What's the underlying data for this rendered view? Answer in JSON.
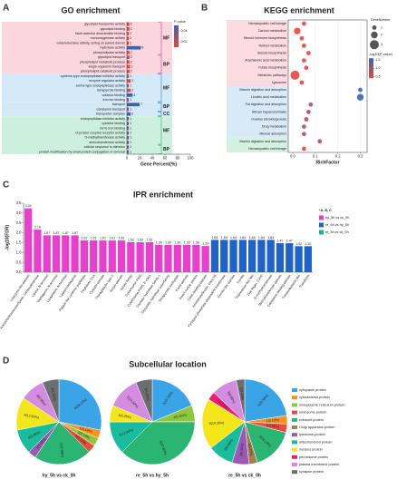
{
  "chart_data": [
    {
      "type": "hbar",
      "panel": "A",
      "title": "GO enrichment",
      "x_label": "Gene Percent(%)",
      "xlim": [
        0,
        100
      ],
      "xticks": [
        0,
        20,
        40,
        60,
        80,
        100
      ],
      "categories": [
        "glycolipid transporter activity",
        "glycolipid binding",
        "flavin adenine dinucleotide binding",
        "monooxygenase activity",
        "oxidoreductase activity, acting on paired donors",
        "hydrolase activity",
        "phospholipase activity",
        "glycolipid transport",
        "phospholipid metabolic process",
        "single-organism transport",
        "phospholipid catabolic process",
        "cysteine-type endopeptidase inhibitor activity",
        "enzyme regulator activity",
        "serine-type endopeptidase activity",
        "tetrapyrrole binding",
        "cofactor binding",
        "iron ion binding",
        "transport",
        "cobalamin transport",
        "transporter complex",
        "endopeptidase inhibitor activity",
        "cysteine binding",
        "ferric iron binding",
        "G-protein coupled receptor activity",
        "O-methyltransferase activity",
        "aminotransferase activity",
        "cellular response to stimulus",
        "protein modification by small protein conjugation or removal"
      ],
      "values": [
        4,
        4,
        3,
        3,
        3,
        22,
        4,
        4,
        4,
        5,
        4,
        3,
        6,
        3,
        6,
        9,
        3,
        20,
        3,
        6,
        3,
        3,
        3,
        3,
        3,
        3,
        3,
        3
      ],
      "counts": [
        2,
        2,
        2,
        2,
        2,
        6,
        2,
        2,
        2,
        2,
        2,
        1,
        2,
        1,
        2,
        3,
        1,
        7,
        1,
        2,
        1,
        1,
        1,
        1,
        1,
        1,
        1,
        1
      ],
      "colors": [
        "#e8463f",
        "#e8463f",
        "#e8463f",
        "#e8463f",
        "#e8463f",
        "#3c64ae",
        "#e8463f",
        "#e8463f",
        "#e8463f",
        "#e8463f",
        "#e8463f",
        "#b04a6e",
        "#e8463f",
        "#b04a6e",
        "#e8463f",
        "#3c64ae",
        "#b04a6e",
        "#3c64ae",
        "#b04a6e",
        "#3c64ae",
        "#7a559a",
        "#7a559a",
        "#7a559a",
        "#7a559a",
        "#7a559a",
        "#7a559a",
        "#7a559a",
        "#7a559a"
      ],
      "groups": [
        {
          "name": "MF",
          "size": 7,
          "color": "#e33a8c",
          "fill": "#fbd6df"
        },
        {
          "name": "BP",
          "size": 4,
          "color": "#e33a8c",
          "fill": "#fbd6df"
        },
        {
          "name": "MF",
          "size": 6,
          "color": "#2f7fd0",
          "fill": "#d3e9f7"
        },
        {
          "name": "BP",
          "size": 2,
          "color": "#2f7fd0",
          "fill": "#d3e9f7"
        },
        {
          "name": "CC",
          "size": 1,
          "color": "#2f7fd0",
          "fill": "#d3e9f7"
        },
        {
          "name": "MF",
          "size": 6,
          "color": "#21b573",
          "fill": "#cdf0de"
        },
        {
          "name": "BP",
          "size": 2,
          "color": "#21b573",
          "fill": "#cdf0de"
        }
      ],
      "color_legend": {
        "title": "P-value",
        "lim": [
          0.05,
          0.01
        ],
        "ticks": [
          0.04,
          0.02
        ],
        "colors": [
          "#3c64ae",
          "#e8463f"
        ]
      }
    },
    {
      "type": "bubble",
      "panel": "B",
      "title": "KEGG enrichment",
      "x_label": "RichFactor",
      "xlim": [
        -0.02,
        0.33
      ],
      "xticks": [
        {
          "value": 0,
          "label": "0.0"
        },
        0.1,
        0.2,
        0.3
      ],
      "categories": [
        "Hematopoietic cell lineage",
        "Carbon metabolism",
        "Steroid hormone biosynthesis",
        "Retinol metabolism",
        "Steroid biosynthesis",
        "Arachidonic acid metabolism",
        "Folate biosynthesis",
        "Metabolic pathways",
        "Lysosome",
        "Vitamin digestion and absorption",
        "Linoleic acid metabolism",
        "Fat digestion and absorption",
        "African trypanosomiasis",
        "Ovarian steroidogenesis",
        "Drug metabolism",
        "Mineral absorption",
        "Vitamin digestion and absorption",
        "Hematopoietic cell lineage"
      ],
      "values": [
        0.05,
        0.02,
        0.04,
        0.05,
        0.07,
        0.05,
        0.06,
        0.01,
        0.04,
        0.3,
        0.3,
        0.08,
        0.07,
        0.06,
        0.05,
        0.05,
        0.12,
        0.05
      ],
      "sizes": [
        1,
        2,
        1,
        1,
        1,
        1,
        1,
        3,
        1,
        1,
        2,
        1,
        1,
        1,
        1,
        1,
        1,
        1
      ],
      "colors": [
        "#e8463f",
        "#e8463f",
        "#e8463f",
        "#e8463f",
        "#e8463f",
        "#e8463f",
        "#e8463f",
        "#e8463f",
        "#e8463f",
        "#3c64ae",
        "#3c64ae",
        "#b04a6e",
        "#b04a6e",
        "#b04a6e",
        "#b04a6e",
        "#b04a6e",
        "#b04a6e",
        "#e8463f"
      ],
      "groups": [
        {
          "size": 9,
          "fill": "#fcdbe3"
        },
        {
          "size": 7,
          "fill": "#d8eaf7"
        },
        {
          "size": 2,
          "fill": "#d2f1e2"
        }
      ],
      "size_legend": {
        "title": "GeneNumber",
        "sizes": [
          1,
          2,
          3
        ]
      },
      "color_legend": {
        "title": "-log10(P-value)",
        "lim": [
          1.6,
          0.4
        ],
        "ticks": [
          1.5,
          {
            "value": 1,
            "label": "1.0"
          },
          0.5
        ],
        "colors": [
          "#3c64ae",
          "#e8463f"
        ]
      }
    },
    {
      "type": "bar",
      "panel": "C",
      "title": "IPR enrichment",
      "y_label": "-log10(FDR)",
      "ylim": [
        0,
        3.5
      ],
      "yticks": [
        {
          "value": 0,
          "label": "0.0"
        },
        0.5,
        {
          "value": 1,
          "label": "1.0"
        },
        1.5,
        {
          "value": 2,
          "label": "2.0"
        },
        2.5,
        {
          "value": 3,
          "label": "3.0"
        },
        3.5
      ],
      "legend_title": "*A, B, C",
      "categories": [
        "Lysozyme-like domain",
        "Acetylcholinesterase/lipase, carboxylesterase",
        "Lipase, N-terminal",
        "Vitellogenin, N-terminal",
        "Lipoprotein, N-terminal",
        "Lipase/vitellogenin",
        "Papain-like cysteine peptidase",
        "Peptidase C1A",
        "Cystatin domain",
        "Thyroglobulin type-1",
        "Serpin domain",
        "Serpin family",
        "Cytochrome P450",
        "Cytochrome P450, E-class",
        "Glycosyl hydrolase family 1",
        "Glycoside hydrolase superfamily",
        "Tetrapyrrole methylase",
        "Kazal domain",
        "Insect cuticle protein",
        "Chitin-binding domain",
        "Aminotransferase, class I/II",
        "Pyridoxal phosphate-dependent transferase",
        "Ferritin-like domain",
        "Ferritin",
        "Thioredoxin-like fold",
        "Zinc finger, C2H2",
        "O-methyltransferase",
        "Methyltransferase domain",
        "Cobalamin-binding domain",
        "Transcobalamin-like",
        "Transferrin"
      ],
      "series": [
        {
          "name": "hy_5h vs ck_0h",
          "color": "#e83fcf",
          "values": [
            3.24,
            2.16,
            1.87,
            1.87,
            1.87,
            1.87,
            1.61,
            1.61,
            1.61,
            1.61,
            1.61,
            1.52,
            1.52,
            1.52,
            1.39,
            1.39,
            1.39,
            1.39,
            1.39,
            1.33,
            null,
            null,
            null,
            null,
            null,
            null,
            null,
            null,
            null,
            null,
            null
          ]
        },
        {
          "name": "re_5h vs hy_5h",
          "color": "#1f62c9",
          "values": [
            null,
            null,
            null,
            null,
            null,
            null,
            null,
            null,
            null,
            null,
            null,
            null,
            null,
            null,
            null,
            null,
            null,
            null,
            null,
            null,
            1.64,
            1.64,
            1.64,
            1.64,
            1.64,
            1.64,
            1.64,
            1.47,
            1.47,
            1.32,
            1.32
          ]
        },
        {
          "name": "re_5h vs ck_0h",
          "color": "#21b58f",
          "values": [
            null,
            null,
            null,
            null,
            null,
            null,
            null,
            null,
            null,
            null,
            null,
            null,
            null,
            null,
            null,
            null,
            null,
            null,
            null,
            null,
            null,
            null,
            null,
            null,
            null,
            null,
            null,
            null,
            null,
            null,
            null
          ]
        }
      ]
    },
    {
      "type": "pie",
      "panel": "D",
      "title": "Subcellular location",
      "categories": [
        "cytoplasm protein",
        "cytoskeleton protein",
        "endoplasmic reticulum protein",
        "endosome protein",
        "extracell protein",
        "Golgi apparatus protein",
        "lysosome protein",
        "mitochondrion protein",
        "nucleus protein",
        "peroxisome protein",
        "plasma membrane protein",
        "synapse protein"
      ],
      "colors": [
        "#3aa5e6",
        "#f7931e",
        "#8dc63f",
        "#e84c3d",
        "#2ab573",
        "#a67c52",
        "#9b59b6",
        "#1abc9c",
        "#f4e61b",
        "#ed1e79",
        "#d38de0",
        "#6d6e71"
      ],
      "pies": [
        {
          "name": "hy_5h vs ck_0h",
          "values": [
            28.13,
            3.13,
            3.13,
            3.13,
            21.88,
            null,
            3.13,
            9.38,
            12.5,
            null,
            9.38,
            6.25
          ],
          "value_labels": [
            "9(28.13%)",
            "1(3.13%)",
            "1(3.13%)",
            "1(3.13%)",
            "7(21.88%)",
            null,
            "1(3.13%)",
            "3(9.38%)",
            "4(12.50%)",
            null,
            "3(9.38%)",
            "2(6.25%)"
          ]
        },
        {
          "name": "re_5h vs hy_5h",
          "values": [
            18.75,
            null,
            6.25,
            null,
            37.5,
            null,
            null,
            12.5,
            6.25,
            null,
            12.5,
            6.25
          ],
          "value_labels": [
            "3(18.75%)",
            null,
            "1(6.25%)",
            null,
            "6(37.50%)",
            null,
            null,
            "2(12.50%)",
            "1(6.25%)",
            null,
            "2(12.50%)",
            "1(6.25%)"
          ]
        },
        {
          "name": "re_5h vs ck_0h",
          "values": [
            22.58,
            3.23,
            null,
            3.23,
            16.13,
            3.23,
            6.45,
            9.68,
            19.35,
            3.23,
            9.68,
            3.23
          ],
          "value_labels": [
            "7(22.58%)",
            "1(3.23%)",
            null,
            "1(3.23%)",
            "5(16.13%)",
            "1(3.23%)",
            "2(6.45%)",
            "3(9.68%)",
            "6(19.35%)",
            "1(3.23%)",
            "3(9.68%)",
            "1(3.23%)"
          ]
        }
      ]
    }
  ]
}
